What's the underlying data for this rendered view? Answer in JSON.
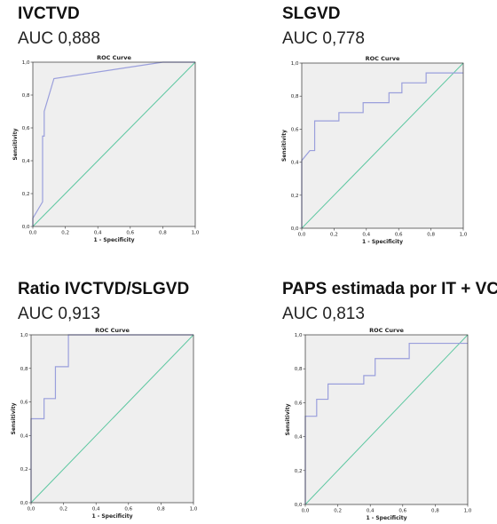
{
  "colors": {
    "plot_bg": "#efefef",
    "roc_line": "#9a9fdc",
    "reference_line": "#5cc7a0",
    "frame": "#333333"
  },
  "panels": [
    {
      "title": "IVCTVD",
      "auc": "AUC 0,888"
    },
    {
      "title": "SLGVD",
      "auc": "AUC 0,778"
    },
    {
      "title": "Ratio IVCTVD/SLGVD",
      "auc": "AUC 0,913"
    },
    {
      "title": "PAPS estimada por IT + VCI",
      "auc": "AUC 0,813"
    }
  ],
  "chart_data": [
    {
      "type": "line",
      "title": "ROC Curve",
      "xlabel": "1 - Specificity",
      "ylabel": "Sensitivity",
      "xlim": [
        0,
        1
      ],
      "ylim": [
        0,
        1
      ],
      "ticks": [
        "0,0",
        "0,2",
        "0,4",
        "0,6",
        "0,8",
        "1,0"
      ],
      "grid": false,
      "legend": "none",
      "series": [
        {
          "x": [
            0,
            0,
            0.06,
            0.06,
            0.07,
            0.07,
            0.13,
            0.8,
            1
          ],
          "y": [
            0,
            0.05,
            0.15,
            0.55,
            0.55,
            0.7,
            0.9,
            1,
            1
          ]
        },
        {
          "x": [
            0,
            1
          ],
          "y": [
            0,
            1
          ]
        }
      ]
    },
    {
      "type": "line",
      "title": "ROC Curve",
      "xlabel": "1 - Specificity",
      "ylabel": "Sensitivity",
      "xlim": [
        0,
        1
      ],
      "ylim": [
        0,
        1
      ],
      "ticks": [
        "0,0",
        "0,2",
        "0,4",
        "0,6",
        "0,8",
        "1,0"
      ],
      "grid": false,
      "legend": "none",
      "series": [
        {
          "x": [
            0,
            0,
            0.05,
            0.05,
            0.08,
            0.08,
            0.23,
            0.23,
            0.38,
            0.38,
            0.54,
            0.54,
            0.62,
            0.62,
            0.77,
            0.77,
            1
          ],
          "y": [
            0,
            0.41,
            0.47,
            0.47,
            0.47,
            0.65,
            0.65,
            0.7,
            0.7,
            0.76,
            0.76,
            0.82,
            0.82,
            0.88,
            0.88,
            0.94,
            0.94
          ]
        },
        {
          "x": [
            0,
            1
          ],
          "y": [
            0,
            1
          ]
        }
      ]
    },
    {
      "type": "line",
      "title": "ROC Curve",
      "xlabel": "1 - Specificity",
      "ylabel": "Sensitivity",
      "xlim": [
        0,
        1
      ],
      "ylim": [
        0,
        1
      ],
      "ticks": [
        "0,0",
        "0,2",
        "0,4",
        "0,6",
        "0,8",
        "1,0"
      ],
      "grid": false,
      "legend": "none",
      "series": [
        {
          "x": [
            0,
            0,
            0.08,
            0.08,
            0.15,
            0.15,
            0.23,
            0.23,
            1
          ],
          "y": [
            0,
            0.5,
            0.5,
            0.62,
            0.62,
            0.81,
            0.81,
            1,
            1
          ]
        },
        {
          "x": [
            0,
            1
          ],
          "y": [
            0,
            1
          ]
        }
      ]
    },
    {
      "type": "line",
      "title": "ROC Curve",
      "xlabel": "1 - Specificity",
      "ylabel": "Sensitivity",
      "xlim": [
        0,
        1
      ],
      "ylim": [
        0,
        1
      ],
      "ticks": [
        "0,0",
        "0,2",
        "0,4",
        "0,6",
        "0,8",
        "1,0"
      ],
      "grid": false,
      "legend": "none",
      "series": [
        {
          "x": [
            0,
            0,
            0.07,
            0.07,
            0.14,
            0.14,
            0.36,
            0.36,
            0.43,
            0.43,
            0.64,
            0.64,
            1
          ],
          "y": [
            0,
            0.52,
            0.52,
            0.62,
            0.62,
            0.71,
            0.71,
            0.76,
            0.76,
            0.86,
            0.86,
            0.95,
            0.95
          ]
        },
        {
          "x": [
            0,
            1
          ],
          "y": [
            0,
            1
          ]
        }
      ]
    }
  ]
}
